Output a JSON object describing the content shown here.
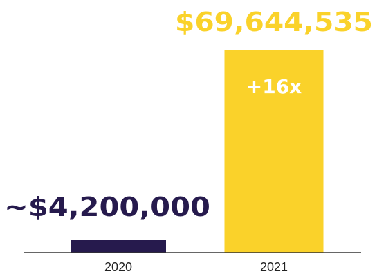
{
  "chart_data": {
    "type": "bar",
    "categories": [
      "2020",
      "2021"
    ],
    "values": [
      4200000,
      69644535
    ],
    "value_labels": [
      "~$4,200,000",
      "$69,644,535"
    ],
    "annotations": [
      {
        "category": "2021",
        "text": "+16x"
      }
    ],
    "title": "",
    "xlabel": "",
    "ylabel": "",
    "ylim": [
      0,
      69644535
    ],
    "grid": false,
    "legend": "none"
  },
  "colors": {
    "bar_2020": "#261a4d",
    "bar_2021": "#fad22a",
    "label_2020": "#261a4d",
    "label_2021": "#fad22a",
    "annotation": "#ffffff",
    "axis": "#333333",
    "tick": "#222222"
  }
}
